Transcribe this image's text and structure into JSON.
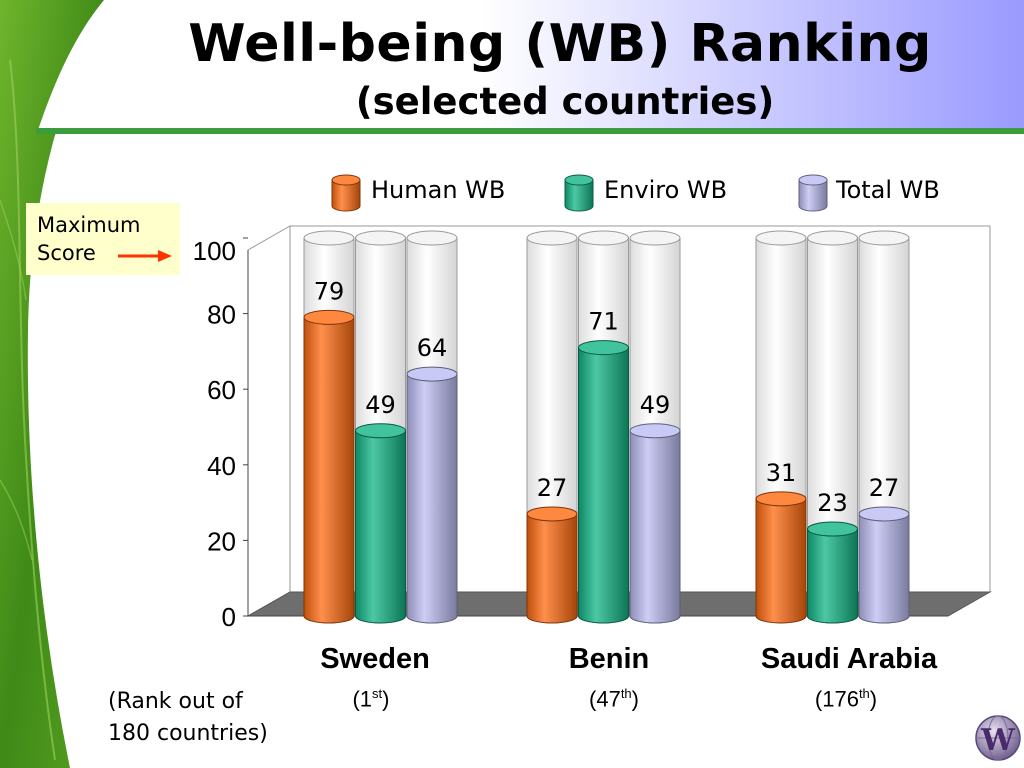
{
  "slide": {
    "title": "Well-being (WB) Ranking",
    "subtitle": "(selected countries)",
    "max_note_line1": "Maximum",
    "max_note_line2": "Score",
    "rank_note_line1": "(Rank out of",
    "rank_note_line2": "180 countries)",
    "logo_glyph": "W",
    "colors": {
      "title_band": "#9999ff",
      "rule": "#3a9c3c",
      "note_bg": "#ffffcc",
      "arrow": "#ff3300",
      "leaf": "#4c9a1a"
    }
  },
  "chart_data": {
    "type": "bar",
    "style": "3d-cylinder",
    "categories": [
      "Sweden",
      "Benin",
      "Saudi Arabia"
    ],
    "ranks": [
      {
        "num": "(1",
        "sup": "st",
        "close": ")"
      },
      {
        "num": "(47",
        "sup": "th",
        "close": ")"
      },
      {
        "num": "(176",
        "sup": "th",
        "close": ")"
      }
    ],
    "series": [
      {
        "name": "Human WB",
        "values": [
          79,
          27,
          31
        ],
        "color": "#ff6a10"
      },
      {
        "name": "Enviro WB",
        "values": [
          49,
          71,
          23
        ],
        "color": "#12b585"
      },
      {
        "name": "Total WB",
        "values": [
          64,
          49,
          27
        ],
        "color": "#bcbcf2"
      }
    ],
    "maximum": 100,
    "ylim": [
      0,
      100
    ],
    "yticks": [
      0,
      20,
      40,
      60,
      80,
      100
    ],
    "grid": false,
    "legend_position": "top"
  }
}
